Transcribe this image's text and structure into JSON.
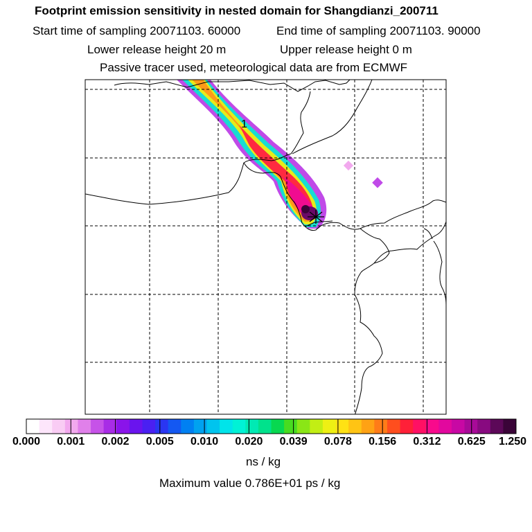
{
  "title": "Footprint emission sensitivity in nested domain for Shangdianzi_200711",
  "line_start": "Start time of sampling 20071103. 60000",
  "line_end": "End time of sampling 20071103. 90000",
  "line_lower": "Lower release height   20 m",
  "line_upper": "Upper release height    0 m",
  "line_tracer": "Passive tracer used, meteorological data are from ECMWF",
  "map_label": "1",
  "colorbar": {
    "ticks": [
      "0.000",
      "0.001",
      "0.002",
      "0.005",
      "0.010",
      "0.020",
      "0.039",
      "0.078",
      "0.156",
      "0.312",
      "0.625",
      "1.250"
    ],
    "colors": [
      "#ffffff",
      "#fde6fb",
      "#f9ccf4",
      "#f2a9ee",
      "#e080ea",
      "#c652e8",
      "#a82ce6",
      "#8a14ea",
      "#6a14ee",
      "#4a20f2",
      "#2a36f2",
      "#1458f2",
      "#0080f2",
      "#00a2f0",
      "#00c4ee",
      "#00e4ea",
      "#00f2d6",
      "#00eab4",
      "#00e28c",
      "#08d850",
      "#48dc20",
      "#8ae616",
      "#c2ee14",
      "#eef014",
      "#ffe214",
      "#ffc414",
      "#ffa214",
      "#ff7c18",
      "#ff4e1e",
      "#ff2038",
      "#ff1064",
      "#f80a8c",
      "#e2089e",
      "#c808a4",
      "#a80a98",
      "#880a80",
      "#5c0858",
      "#3a0438"
    ],
    "unit": "ns / kg"
  },
  "max_value": "Maximum value  0.786E+01 ps / kg"
}
